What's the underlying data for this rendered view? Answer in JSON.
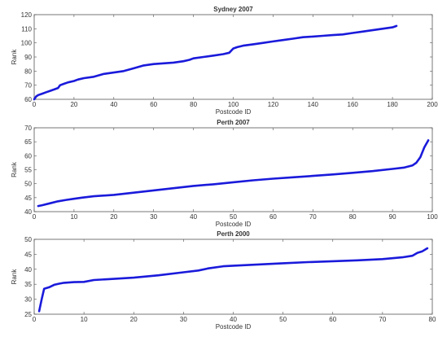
{
  "chart_data": [
    {
      "type": "line",
      "title": "Sydney 2007",
      "xlabel": "Postcode ID",
      "ylabel": "Rank",
      "xlim": [
        0,
        200
      ],
      "ylim": [
        60,
        120
      ],
      "xticks": [
        0,
        20,
        40,
        60,
        80,
        100,
        120,
        140,
        160,
        180,
        200
      ],
      "yticks": [
        60,
        70,
        80,
        90,
        100,
        110,
        120
      ],
      "color": "#1a1adb",
      "series": [
        {
          "x": [
            0,
            1,
            2,
            4,
            6,
            8,
            10,
            12,
            13,
            15,
            17,
            20,
            22,
            25,
            30,
            35,
            40,
            45,
            50,
            55,
            60,
            65,
            70,
            75,
            78,
            80,
            85,
            90,
            95,
            98,
            100,
            102,
            105,
            110,
            115,
            120,
            125,
            130,
            135,
            140,
            145,
            150,
            155,
            160,
            165,
            170,
            175,
            180,
            182
          ],
          "y": [
            60,
            62,
            63,
            64,
            65,
            66,
            67,
            68,
            70,
            71,
            72,
            73,
            74,
            75,
            76,
            78,
            79,
            80,
            82,
            84,
            85,
            85.5,
            86,
            87,
            88,
            89,
            90,
            91,
            92,
            93,
            96,
            97,
            98,
            99,
            100,
            101,
            102,
            103,
            104,
            104.5,
            105,
            105.5,
            106,
            107,
            108,
            109,
            110,
            111,
            112
          ]
        }
      ]
    },
    {
      "type": "line",
      "title": "Perth 2007",
      "xlabel": "Postcode ID",
      "ylabel": "Rank",
      "xlim": [
        0,
        100
      ],
      "ylim": [
        40,
        70
      ],
      "xticks": [
        0,
        10,
        20,
        30,
        40,
        50,
        60,
        70,
        80,
        90,
        100
      ],
      "yticks": [
        40,
        45,
        50,
        55,
        60,
        65,
        70
      ],
      "color": "#1a1adb",
      "series": [
        {
          "x": [
            1,
            2,
            4,
            6,
            8,
            10,
            12,
            15,
            20,
            25,
            30,
            35,
            40,
            45,
            50,
            55,
            60,
            65,
            70,
            75,
            80,
            85,
            90,
            93,
            95,
            96,
            97,
            98,
            99
          ],
          "y": [
            42,
            42.3,
            43,
            43.7,
            44.2,
            44.6,
            45,
            45.5,
            46,
            46.8,
            47.6,
            48.4,
            49.2,
            49.8,
            50.5,
            51.2,
            51.8,
            52.3,
            52.8,
            53.3,
            53.9,
            54.5,
            55.3,
            55.8,
            56.5,
            57.5,
            59.5,
            63,
            65.5
          ]
        }
      ]
    },
    {
      "type": "line",
      "title": "Perth 2000",
      "xlabel": "Postcode ID",
      "ylabel": "Rank",
      "xlim": [
        0,
        80
      ],
      "ylim": [
        25,
        50
      ],
      "xticks": [
        0,
        10,
        20,
        30,
        40,
        50,
        60,
        70,
        80
      ],
      "yticks": [
        25,
        30,
        35,
        40,
        45,
        50
      ],
      "color": "#1a1adb",
      "series": [
        {
          "x": [
            1,
            1.5,
            2,
            3,
            4,
            5,
            6,
            8,
            10,
            12,
            15,
            20,
            25,
            30,
            33,
            35,
            38,
            40,
            45,
            50,
            55,
            60,
            65,
            70,
            74,
            76,
            77,
            78,
            79
          ],
          "y": [
            26,
            30,
            33.5,
            34,
            34.8,
            35.2,
            35.5,
            35.7,
            35.8,
            36.4,
            36.7,
            37.2,
            38,
            39,
            39.6,
            40.3,
            41,
            41.2,
            41.6,
            42,
            42.4,
            42.7,
            43,
            43.4,
            44,
            44.5,
            45.5,
            46,
            47
          ]
        }
      ]
    }
  ]
}
